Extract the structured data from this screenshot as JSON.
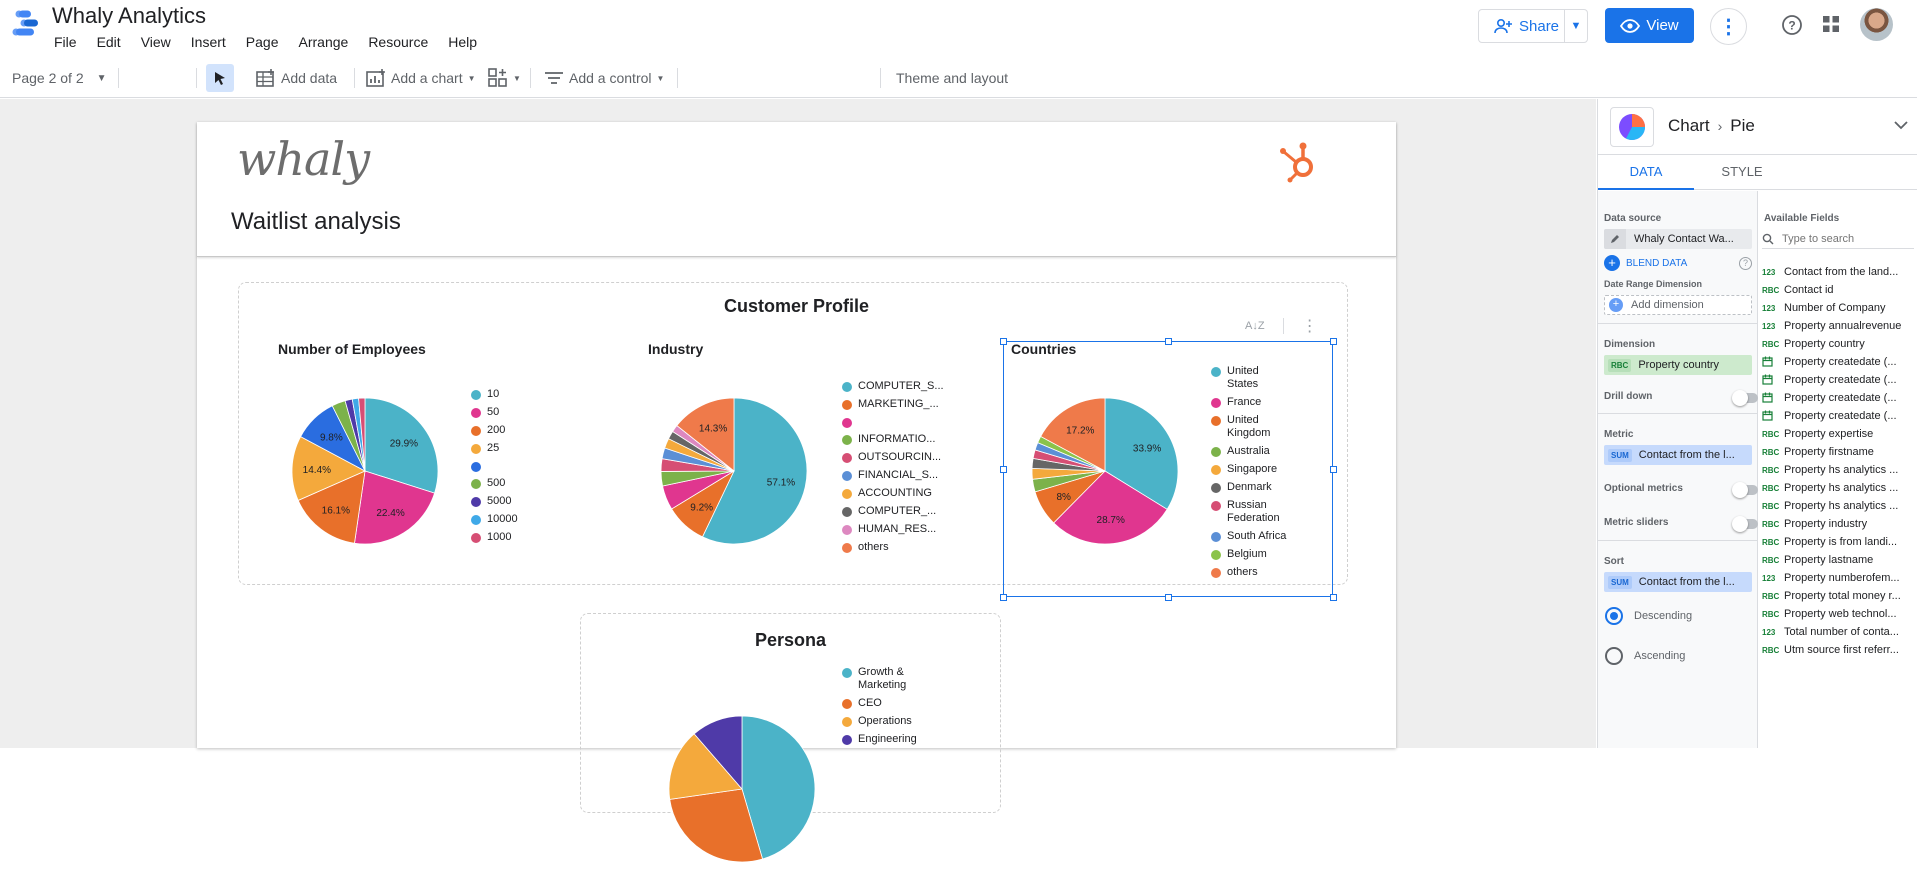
{
  "app": {
    "title": "Whaly Analytics"
  },
  "menu": [
    "File",
    "Edit",
    "View",
    "Insert",
    "Page",
    "Arrange",
    "Resource",
    "Help"
  ],
  "header": {
    "share_label": "Share",
    "view_label": "View"
  },
  "toolbar": {
    "page_indicator": "Page 2 of 2",
    "add_data": "Add data",
    "add_chart": "Add a chart",
    "add_control": "Add a control",
    "theme_layout": "Theme and layout"
  },
  "report": {
    "title": "Waitlist analysis",
    "logo_text": "whaly",
    "customer_profile_title": "Customer Profile",
    "persona_title": "Persona"
  },
  "charts": [
    {
      "id": "employees",
      "title": "Number of Employees",
      "chart_data": {
        "type": "pie",
        "title": "Number of Employees",
        "slices": [
          {
            "label": "10",
            "value": 29.9,
            "color": "#4bb3c8",
            "shown_pct": "29.9%"
          },
          {
            "label": "50",
            "value": 22.4,
            "color": "#e0368f",
            "shown_pct": "22.4%"
          },
          {
            "label": "200",
            "value": 16.1,
            "color": "#e8702a",
            "shown_pct": "16.1%"
          },
          {
            "label": "25",
            "value": 14.4,
            "color": "#f4a93c",
            "shown_pct": "14.4%"
          },
          {
            "label": "",
            "value": 9.8,
            "color": "#2a6de0",
            "shown_pct": "9.8%"
          },
          {
            "label": "500",
            "value": 3.0,
            "color": "#7cb24a",
            "shown_pct": ""
          },
          {
            "label": "5000",
            "value": 1.6,
            "color": "#4f3aa8",
            "shown_pct": ""
          },
          {
            "label": "10000",
            "value": 1.4,
            "color": "#3fa9e8",
            "shown_pct": ""
          },
          {
            "label": "1000",
            "value": 1.4,
            "color": "#d64e74",
            "shown_pct": ""
          }
        ]
      }
    },
    {
      "id": "industry",
      "title": "Industry",
      "chart_data": {
        "type": "pie",
        "title": "Industry",
        "slices": [
          {
            "label": "COMPUTER_S...",
            "value": 57.1,
            "color": "#4bb3c8",
            "shown_pct": "57.1%"
          },
          {
            "label": "MARKETING_...",
            "value": 9.2,
            "color": "#e8702a",
            "shown_pct": "9.2%"
          },
          {
            "label": "",
            "value": 5.4,
            "color": "#e0368f",
            "shown_pct": ""
          },
          {
            "label": "INFORMATIO...",
            "value": 3.2,
            "color": "#7cb24a",
            "shown_pct": ""
          },
          {
            "label": "OUTSOURCIN...",
            "value": 2.8,
            "color": "#d64e74",
            "shown_pct": ""
          },
          {
            "label": "FINANCIAL_S...",
            "value": 2.4,
            "color": "#5b8fd6",
            "shown_pct": ""
          },
          {
            "label": "ACCOUNTING",
            "value": 2.2,
            "color": "#f4a93c",
            "shown_pct": ""
          },
          {
            "label": "COMPUTER_...",
            "value": 1.8,
            "color": "#666666",
            "shown_pct": ""
          },
          {
            "label": "HUMAN_RES...",
            "value": 1.6,
            "color": "#dd88c0",
            "shown_pct": ""
          },
          {
            "label": "others",
            "value": 14.3,
            "color": "#ef7a4a",
            "shown_pct": "14.3%"
          }
        ]
      }
    },
    {
      "id": "countries",
      "title": "Countries",
      "chart_data": {
        "type": "pie",
        "title": "Countries",
        "slices": [
          {
            "label": "United States",
            "value": 33.9,
            "color": "#4bb3c8",
            "shown_pct": "33.9%"
          },
          {
            "label": "France",
            "value": 28.7,
            "color": "#e0368f",
            "shown_pct": "28.7%"
          },
          {
            "label": "United Kingdom",
            "value": 8.0,
            "color": "#e8702a",
            "shown_pct": "8%"
          },
          {
            "label": "Australia",
            "value": 2.8,
            "color": "#7cb24a",
            "shown_pct": ""
          },
          {
            "label": "Singapore",
            "value": 2.4,
            "color": "#f4a93c",
            "shown_pct": ""
          },
          {
            "label": "Denmark",
            "value": 2.2,
            "color": "#666666",
            "shown_pct": ""
          },
          {
            "label": "Russian Federation",
            "value": 1.9,
            "color": "#d64e74",
            "shown_pct": ""
          },
          {
            "label": "South Africa",
            "value": 1.7,
            "color": "#5b8fd6",
            "shown_pct": ""
          },
          {
            "label": "Belgium",
            "value": 1.5,
            "color": "#8bc34a",
            "shown_pct": ""
          },
          {
            "label": "others",
            "value": 17.2,
            "color": "#ef7a4a",
            "shown_pct": "17.2%"
          }
        ]
      }
    },
    {
      "id": "persona",
      "title": "",
      "chart_data": {
        "type": "pie",
        "title": "",
        "slices": [
          {
            "label": "Growth & Marketing",
            "value": 40,
            "color": "#4bb3c8",
            "shown_pct": ""
          },
          {
            "label": "CEO",
            "value": 24,
            "color": "#e8702a",
            "shown_pct": ""
          },
          {
            "label": "Operations",
            "value": 14,
            "color": "#f4a93c",
            "shown_pct": ""
          },
          {
            "label": "Engineering",
            "value": 10,
            "color": "#4f3aa8",
            "shown_pct": ""
          }
        ]
      }
    }
  ],
  "panel": {
    "breadcrumb_root": "Chart",
    "breadcrumb_leaf": "Pie",
    "tab_data": "DATA",
    "tab_style": "STYLE",
    "data_source_label": "Data source",
    "data_source_value": "Whaly Contact Wa...",
    "blend_data": "BLEND DATA",
    "date_range_label": "Date Range Dimension",
    "add_dimension": "Add dimension",
    "dimension_label": "Dimension",
    "dimension_value": "Property country",
    "dimension_tag": "RBC",
    "drill_down": "Drill down",
    "metric_label": "Metric",
    "metric_value": "Contact from the l...",
    "metric_tag": "SUM",
    "optional_metrics": "Optional metrics",
    "metric_sliders": "Metric sliders",
    "sort_label": "Sort",
    "sort_value": "Contact from the l...",
    "sort_tag": "SUM",
    "descending": "Descending",
    "ascending": "Ascending",
    "available_fields": "Available Fields",
    "search_placeholder": "Type to search",
    "fields": [
      {
        "type": "123",
        "name": "Contact from the land..."
      },
      {
        "type": "RBC",
        "name": "Contact id"
      },
      {
        "type": "123",
        "name": "Number of Company"
      },
      {
        "type": "123",
        "name": "Property annualrevenue"
      },
      {
        "type": "RBC",
        "name": "Property country"
      },
      {
        "type": "date",
        "name": "Property createdate (..."
      },
      {
        "type": "date",
        "name": "Property createdate (..."
      },
      {
        "type": "date",
        "name": "Property createdate (..."
      },
      {
        "type": "date",
        "name": "Property createdate (..."
      },
      {
        "type": "RBC",
        "name": "Property expertise"
      },
      {
        "type": "RBC",
        "name": "Property firstname"
      },
      {
        "type": "RBC",
        "name": "Property hs analytics ..."
      },
      {
        "type": "RBC",
        "name": "Property hs analytics ..."
      },
      {
        "type": "RBC",
        "name": "Property hs analytics ..."
      },
      {
        "type": "RBC",
        "name": "Property industry"
      },
      {
        "type": "RBC",
        "name": "Property is from landi..."
      },
      {
        "type": "RBC",
        "name": "Property lastname"
      },
      {
        "type": "123",
        "name": "Property numberofem..."
      },
      {
        "type": "RBC",
        "name": "Property total money r..."
      },
      {
        "type": "RBC",
        "name": "Property web technol..."
      },
      {
        "type": "123",
        "name": "Total number of conta..."
      },
      {
        "type": "RBC",
        "name": "Utm source first referr..."
      }
    ]
  }
}
